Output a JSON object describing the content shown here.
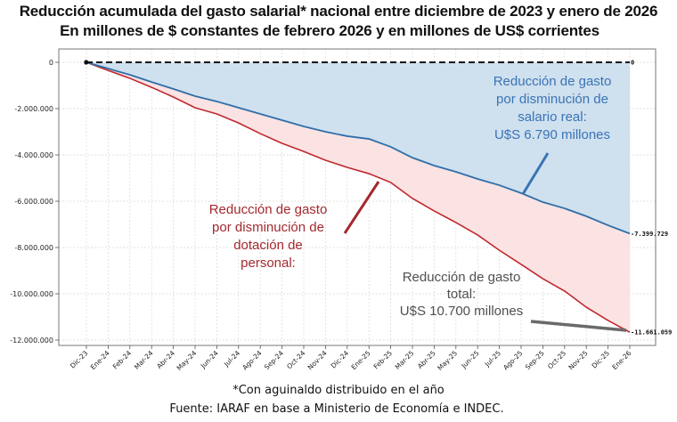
{
  "header": {
    "title": "Reducción acumulada del gasto salarial* nacional entre diciembre de 2023 y enero de 2026",
    "subtitle": "En millones de $ constantes de febrero 2026 y en millones de US$ corrientes"
  },
  "footer": {
    "note": "*Con aguinaldo distribuido en el año",
    "source": "Fuente: IARAF en base a Ministerio de Economía e INDEC."
  },
  "chart_data": {
    "type": "area",
    "title": "Reducción acumulada del gasto salarial* nacional entre diciembre de 2023 y enero de 2026",
    "subtitle": "En millones de $ constantes de febrero 2026 y en millones de US$ corrientes",
    "xlabel": "",
    "ylabel": "",
    "grid": true,
    "ylim": [
      -12200000,
      500000
    ],
    "yticks": [
      0,
      -2000000,
      -4000000,
      -6000000,
      -8000000,
      -10000000,
      -12000000
    ],
    "ytick_labels": [
      "0",
      "-2.000.000",
      "-4.000.000",
      "-6.000.000",
      "-8.000.000",
      "-10.000.000",
      "-12.000.000"
    ],
    "categories": [
      "Dic-23",
      "Ene-24",
      "Feb-24",
      "Mar-24",
      "Abr-24",
      "May-24",
      "Jun-24",
      "Jul-24",
      "Ago-24",
      "Sep-24",
      "Oct-24",
      "Nov-24",
      "Dic-24",
      "Ene-25",
      "Feb-25",
      "Mar-25",
      "Abr-25",
      "May-25",
      "Jun-25",
      "Jul-25",
      "Ago-25",
      "Sep-25",
      "Oct-25",
      "Nov-25",
      "Dic-25",
      "Ene-26"
    ],
    "series": [
      {
        "name": "Base (cero)",
        "style": "dashed",
        "color": "#111111",
        "values": [
          0,
          0,
          0,
          0,
          0,
          0,
          0,
          0,
          0,
          0,
          0,
          0,
          0,
          0,
          0,
          0,
          0,
          0,
          0,
          0,
          0,
          0,
          0,
          0,
          0,
          0
        ],
        "end_label": "0"
      },
      {
        "name": "Reducción por disminución de salario real",
        "color": "#2f6ea8",
        "fill": "#cfe0ef",
        "values": [
          0,
          -270000,
          -540000,
          -850000,
          -1150000,
          -1460000,
          -1690000,
          -1960000,
          -2230000,
          -2500000,
          -2770000,
          -3000000,
          -3190000,
          -3310000,
          -3650000,
          -4120000,
          -4460000,
          -4730000,
          -5040000,
          -5310000,
          -5650000,
          -6040000,
          -6310000,
          -6650000,
          -7040000,
          -7399729
        ],
        "end_label": "-7.399.729"
      },
      {
        "name": "Reducción total",
        "color": "#c0282e",
        "fill": "#fbe3e3",
        "values": [
          0,
          -350000,
          -690000,
          -1080000,
          -1500000,
          -1960000,
          -2230000,
          -2620000,
          -3080000,
          -3500000,
          -3850000,
          -4230000,
          -4540000,
          -4810000,
          -5190000,
          -5880000,
          -6420000,
          -6920000,
          -7460000,
          -8120000,
          -8730000,
          -9350000,
          -9880000,
          -10580000,
          -11150000,
          -11661059
        ],
        "end_label": "-11.661.059"
      }
    ],
    "annotations": [
      {
        "name": "salario-real",
        "lines": [
          "Reducción de gasto",
          "por disminución de",
          "salario real:",
          "U$S 6.790 millones"
        ],
        "color": "#3a74b4"
      },
      {
        "name": "dotacion",
        "lines": [
          "Reducción de gasto",
          "por disminución de",
          "dotación de",
          "personal:"
        ],
        "color": "#a3292e"
      },
      {
        "name": "total",
        "lines": [
          "Reducción de gasto",
          "total:",
          "U$S 10.700 millones"
        ],
        "color": "#505050"
      }
    ]
  }
}
